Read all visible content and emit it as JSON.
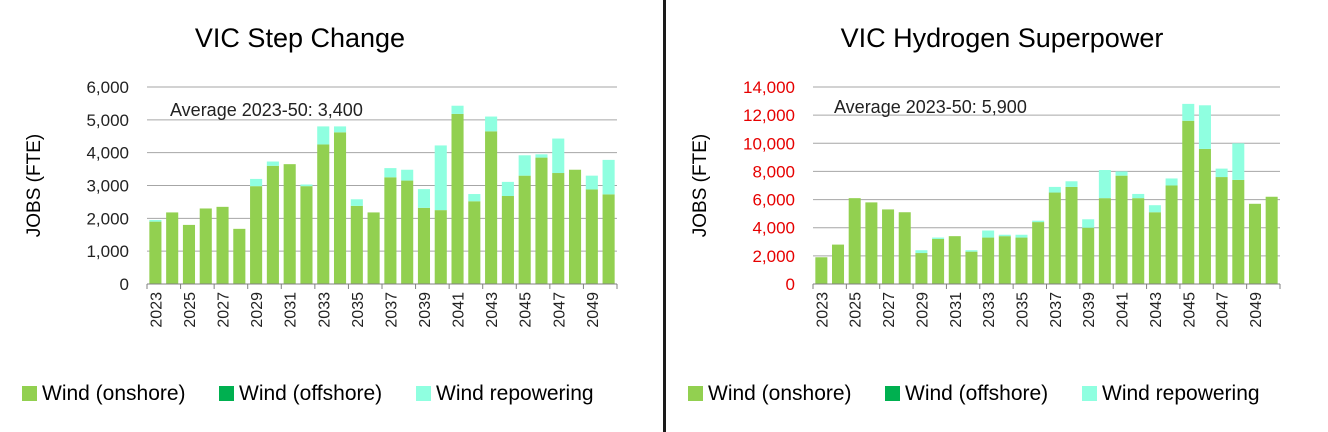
{
  "colors": {
    "onshore": "#92D050",
    "offshore": "#00B050",
    "repowering": "#8FFFE0",
    "grid": "#a6a6a6",
    "axis_text": "#222222",
    "red_ticks": "#e60000"
  },
  "chart_data": [
    {
      "type": "bar",
      "stacked": true,
      "title": "VIC Step Change",
      "ylabel": "JOBS (FTE)",
      "annotation": "Average 2023-50: 3,400",
      "ylim": [
        0,
        6000
      ],
      "yticks": [
        0,
        1000,
        2000,
        3000,
        4000,
        5000,
        6000
      ],
      "ytick_labels": [
        "0",
        "1,000",
        "2,000",
        "3,000",
        "4,000",
        "5,000",
        "6,000"
      ],
      "tick_color": "axis_text",
      "categories": [
        "2023",
        "2024",
        "2025",
        "2026",
        "2027",
        "2028",
        "2029",
        "2030",
        "2031",
        "2032",
        "2033",
        "2034",
        "2035",
        "2036",
        "2037",
        "2038",
        "2039",
        "2040",
        "2041",
        "2042",
        "2043",
        "2044",
        "2045",
        "2046",
        "2047",
        "2048",
        "2049",
        "2050"
      ],
      "xtick_labels": [
        "2023",
        "",
        "2025",
        "",
        "2027",
        "",
        "2029",
        "",
        "2031",
        "",
        "2033",
        "",
        "2035",
        "",
        "2037",
        "",
        "2039",
        "",
        "2041",
        "",
        "2043",
        "",
        "2045",
        "",
        "2047",
        "",
        "2049",
        ""
      ],
      "series": [
        {
          "name": "Wind (onshore)",
          "color": "onshore",
          "values": [
            1900,
            2180,
            1800,
            2300,
            2350,
            1680,
            2980,
            3600,
            3650,
            2980,
            4250,
            4620,
            2380,
            2180,
            3250,
            3150,
            2320,
            2250,
            5180,
            2520,
            4650,
            2680,
            3300,
            3850,
            3380,
            3480,
            2880,
            2730
          ]
        },
        {
          "name": "Wind (offshore)",
          "color": "offshore",
          "values": [
            0,
            0,
            0,
            0,
            0,
            0,
            0,
            0,
            0,
            0,
            0,
            0,
            0,
            0,
            0,
            0,
            0,
            0,
            0,
            0,
            0,
            0,
            0,
            0,
            0,
            0,
            0,
            0
          ]
        },
        {
          "name": "Wind repowering",
          "color": "repowering",
          "values": [
            50,
            0,
            0,
            0,
            0,
            0,
            220,
            130,
            0,
            50,
            550,
            180,
            200,
            0,
            280,
            330,
            570,
            1970,
            250,
            220,
            450,
            430,
            620,
            100,
            1050,
            0,
            420,
            1050
          ]
        }
      ],
      "legend": [
        "Wind (onshore)",
        "Wind (offshore)",
        "Wind repowering"
      ]
    },
    {
      "type": "bar",
      "stacked": true,
      "title": "VIC Hydrogen Superpower",
      "ylabel": "JOBS (FTE)",
      "annotation": "Average 2023-50: 5,900",
      "ylim": [
        0,
        14000
      ],
      "yticks": [
        0,
        2000,
        4000,
        6000,
        8000,
        10000,
        12000,
        14000
      ],
      "ytick_labels": [
        "0",
        "2,000",
        "4,000",
        "6,000",
        "8,000",
        "10,000",
        "12,000",
        "14,000"
      ],
      "tick_color": "red_ticks",
      "categories": [
        "2023",
        "2024",
        "2025",
        "2026",
        "2027",
        "2028",
        "2029",
        "2030",
        "2031",
        "2032",
        "2033",
        "2034",
        "2035",
        "2036",
        "2037",
        "2038",
        "2039",
        "2040",
        "2041",
        "2042",
        "2043",
        "2044",
        "2045",
        "2046",
        "2047",
        "2048",
        "2049",
        "2050"
      ],
      "xtick_labels": [
        "2023",
        "",
        "2025",
        "",
        "2027",
        "",
        "2029",
        "",
        "2031",
        "",
        "2033",
        "",
        "2035",
        "",
        "2037",
        "",
        "2039",
        "",
        "2041",
        "",
        "2043",
        "",
        "2045",
        "",
        "2047",
        "",
        "2049",
        ""
      ],
      "series": [
        {
          "name": "Wind (onshore)",
          "color": "onshore",
          "values": [
            1900,
            2800,
            6100,
            5800,
            5300,
            5100,
            2200,
            3200,
            3400,
            2300,
            3300,
            3400,
            3300,
            4400,
            6500,
            6900,
            4000,
            6100,
            7700,
            6100,
            5100,
            7000,
            11600,
            9600,
            7600,
            7400,
            5700,
            6200
          ]
        },
        {
          "name": "Wind (offshore)",
          "color": "offshore",
          "values": [
            0,
            0,
            0,
            0,
            0,
            0,
            0,
            0,
            0,
            0,
            0,
            0,
            0,
            0,
            0,
            0,
            0,
            0,
            0,
            0,
            0,
            0,
            0,
            0,
            0,
            0,
            0,
            0
          ]
        },
        {
          "name": "Wind repowering",
          "color": "repowering",
          "values": [
            0,
            0,
            0,
            0,
            0,
            0,
            200,
            100,
            0,
            100,
            500,
            100,
            200,
            100,
            400,
            400,
            600,
            2000,
            300,
            300,
            500,
            500,
            1200,
            3100,
            600,
            2600,
            0,
            0
          ]
        }
      ],
      "legend": [
        "Wind (onshore)",
        "Wind (offshore)",
        "Wind repowering"
      ]
    }
  ]
}
